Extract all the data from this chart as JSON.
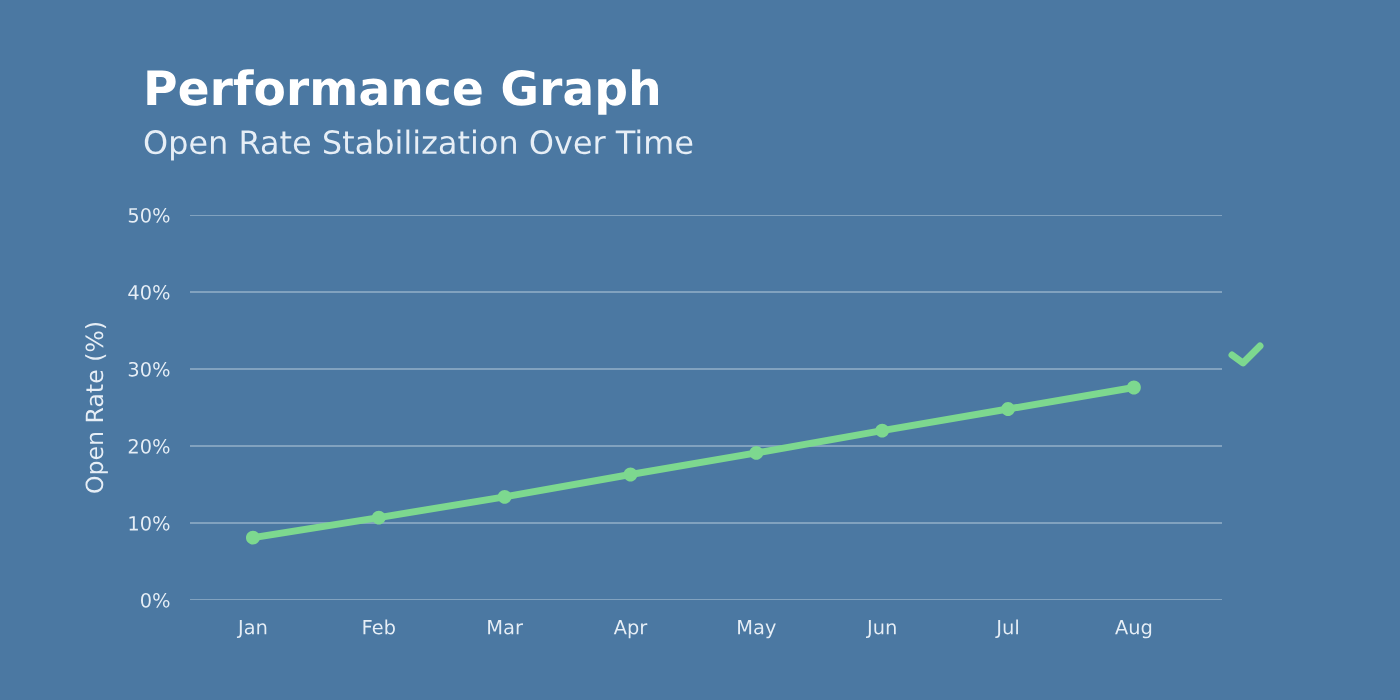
{
  "chart_data": {
    "type": "line",
    "title": "Performance Graph",
    "subtitle": "Open Rate Stabilization Over Time",
    "ylabel": "Open Rate (%)",
    "categories": [
      "Jan",
      "Feb",
      "Mar",
      "Apr",
      "May",
      "Jun",
      "Jul",
      "Aug"
    ],
    "series": [
      {
        "color": "#7dd88f",
        "values": [
          8.1,
          10.7,
          13.4,
          16.3,
          19.1,
          22.0,
          24.8,
          27.6
        ]
      }
    ],
    "ylim": [
      0,
      50
    ],
    "yticks": [
      {
        "value": 0,
        "label": "0%"
      },
      {
        "value": 10,
        "label": "10%"
      },
      {
        "value": 20,
        "label": "20%"
      },
      {
        "value": 30,
        "label": "30%"
      },
      {
        "value": 40,
        "label": "40%"
      },
      {
        "value": 50,
        "label": "50%"
      }
    ],
    "grid": "y",
    "marker": "circle",
    "line_style": "solid",
    "legend": false
  }
}
